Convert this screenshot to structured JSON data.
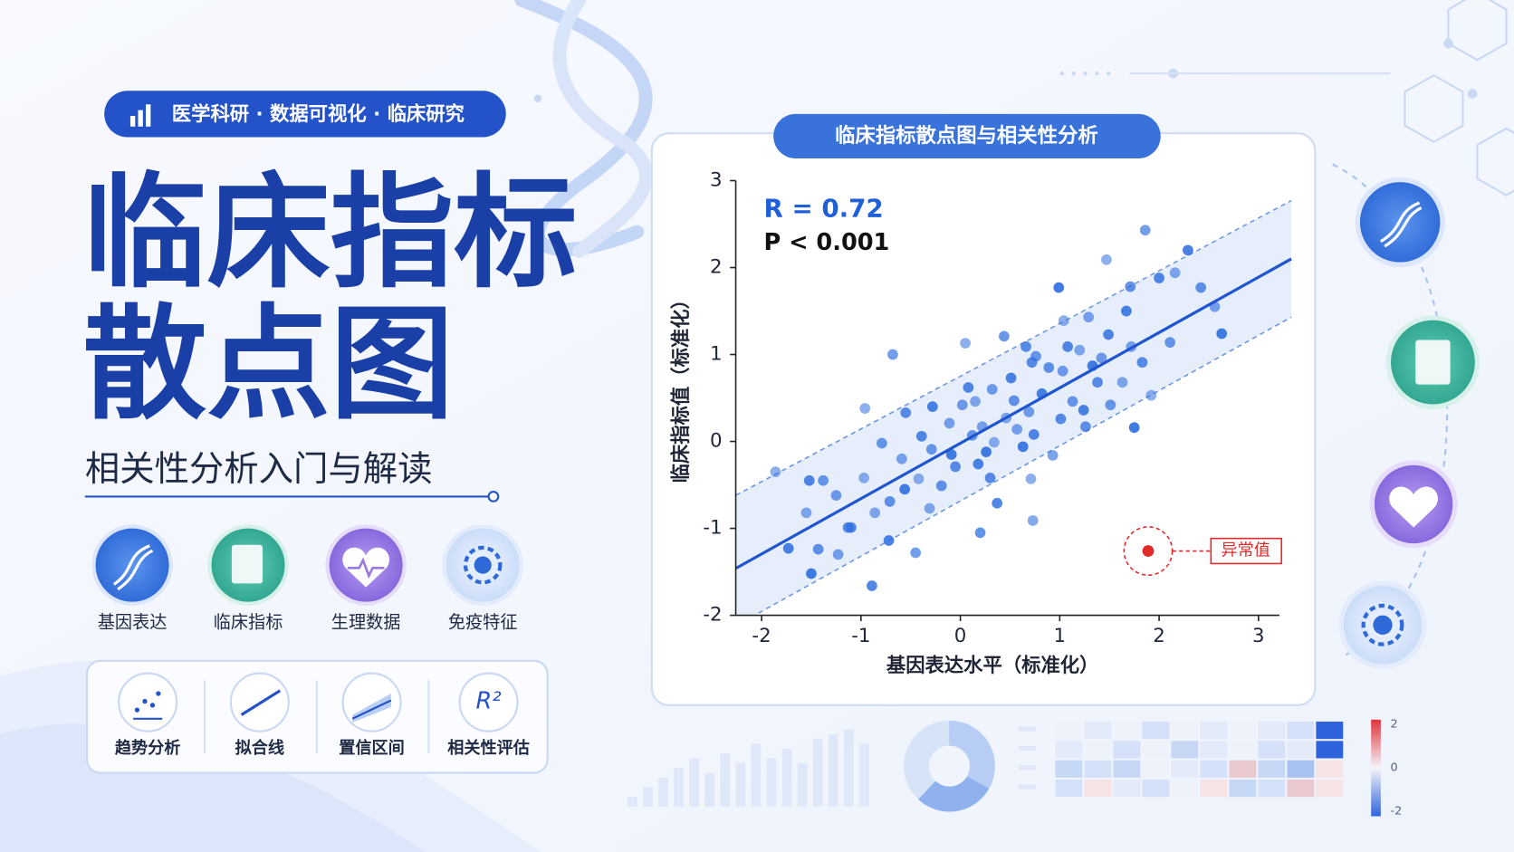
{
  "badge": "医学科研 · 数据可视化 · 临床研究",
  "title_lines": [
    "临床指标",
    "散点图"
  ],
  "subtitle": "相关性分析入门与解读",
  "features": [
    "基因表达",
    "临床指标",
    "生理数据",
    "免疫特征"
  ],
  "tools": {
    "icon_text": "R²",
    "labels": [
      "趋势分析",
      "拟合线",
      "置信区间",
      "相关性评估"
    ]
  },
  "heatmap_legend": {
    "ticks": [
      2,
      0,
      -2
    ]
  },
  "chart_data": {
    "type": "scatter",
    "title": "临床指标散点图与相关性分析",
    "x_label": "基因表达水平（标准化）",
    "y_label": "临床指标值（标准化）",
    "stats": [
      "R = 0.72",
      "P < 0.001"
    ],
    "color": "#2f6fdf",
    "x": [
      -1.86,
      -1.52,
      -1.38,
      -1.55,
      -1.73,
      -1.43,
      -1.23,
      -1.5,
      -1.13,
      -1.25,
      -0.97,
      -0.89,
      -0.79,
      -0.86,
      -0.72,
      -0.71,
      -0.59,
      -0.56,
      -0.55,
      -0.45,
      -0.42,
      -0.39,
      -0.29,
      -0.31,
      -0.28,
      -0.19,
      -0.11,
      -0.09,
      -0.05,
      0.02,
      0.05,
      0.08,
      0.12,
      0.15,
      0.18,
      0.2,
      0.22,
      0.26,
      0.3,
      0.32,
      0.34,
      0.37,
      0.44,
      0.46,
      0.51,
      0.54,
      0.57,
      0.63,
      0.66,
      0.69,
      0.71,
      0.74,
      0.76,
      0.73,
      0.82,
      0.89,
      0.93,
      0.99,
      1.01,
      1.03,
      1.04,
      1.08,
      1.13,
      1.2,
      1.24,
      1.26,
      1.29,
      1.33,
      1.38,
      1.42,
      1.47,
      1.49,
      1.51,
      1.63,
      1.67,
      1.71,
      1.72,
      1.75,
      1.83,
      1.86,
      1.92,
      2.0,
      2.11,
      2.16,
      2.29,
      2.42,
      2.56,
      2.63,
      0.72,
      -0.68,
      -0.96,
      -1.1
    ],
    "values": [
      -0.35,
      -0.45,
      -0.45,
      -0.82,
      -1.23,
      -1.24,
      -1.3,
      -1.52,
      -0.99,
      -0.62,
      -0.42,
      -1.66,
      -0.02,
      -0.82,
      -1.14,
      -0.69,
      -0.2,
      -0.55,
      0.33,
      -1.28,
      -0.43,
      0.06,
      -0.09,
      -0.77,
      0.4,
      -0.51,
      0.21,
      -0.15,
      -0.29,
      0.42,
      1.13,
      0.62,
      0.07,
      0.46,
      -0.26,
      -1.05,
      0.17,
      -0.12,
      -0.42,
      0.6,
      -0.01,
      -0.71,
      1.21,
      0.27,
      0.73,
      0.47,
      0.14,
      -0.06,
      1.09,
      0.34,
      -0.43,
      0.08,
      0.98,
      -0.91,
      0.55,
      0.85,
      -0.16,
      1.77,
      0.26,
      0.81,
      1.39,
      1.09,
      0.46,
      1.05,
      0.36,
      0.17,
      1.43,
      0.87,
      0.68,
      0.96,
      2.09,
      1.23,
      0.42,
      0.68,
      1.5,
      1.78,
      1.09,
      0.16,
      0.91,
      2.43,
      0.53,
      1.88,
      1.14,
      1.94,
      2.2,
      1.77,
      1.55,
      1.24,
      0.91,
      1.0,
      0.38,
      -0.99
    ],
    "fit": {
      "x": [
        -2.26,
        3.33
      ],
      "y": [
        -1.46,
        2.1
      ]
    },
    "band": {
      "x": [
        -2.26,
        3.33
      ],
      "upper": [
        -0.62,
        2.77
      ],
      "lower": [
        -2.12,
        1.43
      ]
    },
    "outlier": {
      "x": 1.89,
      "y": -1.26,
      "label": "异常值",
      "color": "#e02b2b"
    },
    "xlim": [
      -2.26,
      3.21
    ],
    "ylim": [
      -2,
      3
    ],
    "xticks": [
      -2,
      -1,
      0,
      1,
      2,
      3
    ],
    "yticks": [
      -2,
      -1,
      0,
      1,
      2,
      3
    ]
  }
}
